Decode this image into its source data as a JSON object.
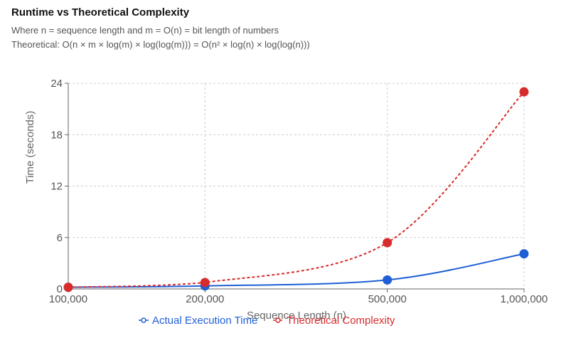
{
  "header": {
    "title": "Runtime vs Theoretical Complexity",
    "subtitle_1": "Where n = sequence length and m = O(n) = bit length of numbers",
    "subtitle_2": "Theoretical: O(n × m × log(m) × log(log(m))) = O(n² × log(n) × log(log(n)))"
  },
  "chart_data": {
    "type": "line",
    "categories": [
      "100,000",
      "200,000",
      "500,000",
      "1,000,000"
    ],
    "series": [
      {
        "name": "Actual Execution Time",
        "values": [
          0.2,
          0.35,
          1.05,
          4.1
        ],
        "color": "#1f5fd6",
        "style": "solid"
      },
      {
        "name": "Theoretical Complexity",
        "values": [
          0.2,
          0.75,
          5.4,
          23.0
        ],
        "color": "#d62c2c",
        "style": "dashed"
      }
    ],
    "xlabel": "Sequence Length (n)",
    "ylabel": "Time (seconds)",
    "ylim": [
      0,
      24
    ],
    "yticks": [
      "0",
      "6",
      "12",
      "18",
      "24"
    ],
    "grid": true,
    "legend_position": "bottom-center"
  }
}
